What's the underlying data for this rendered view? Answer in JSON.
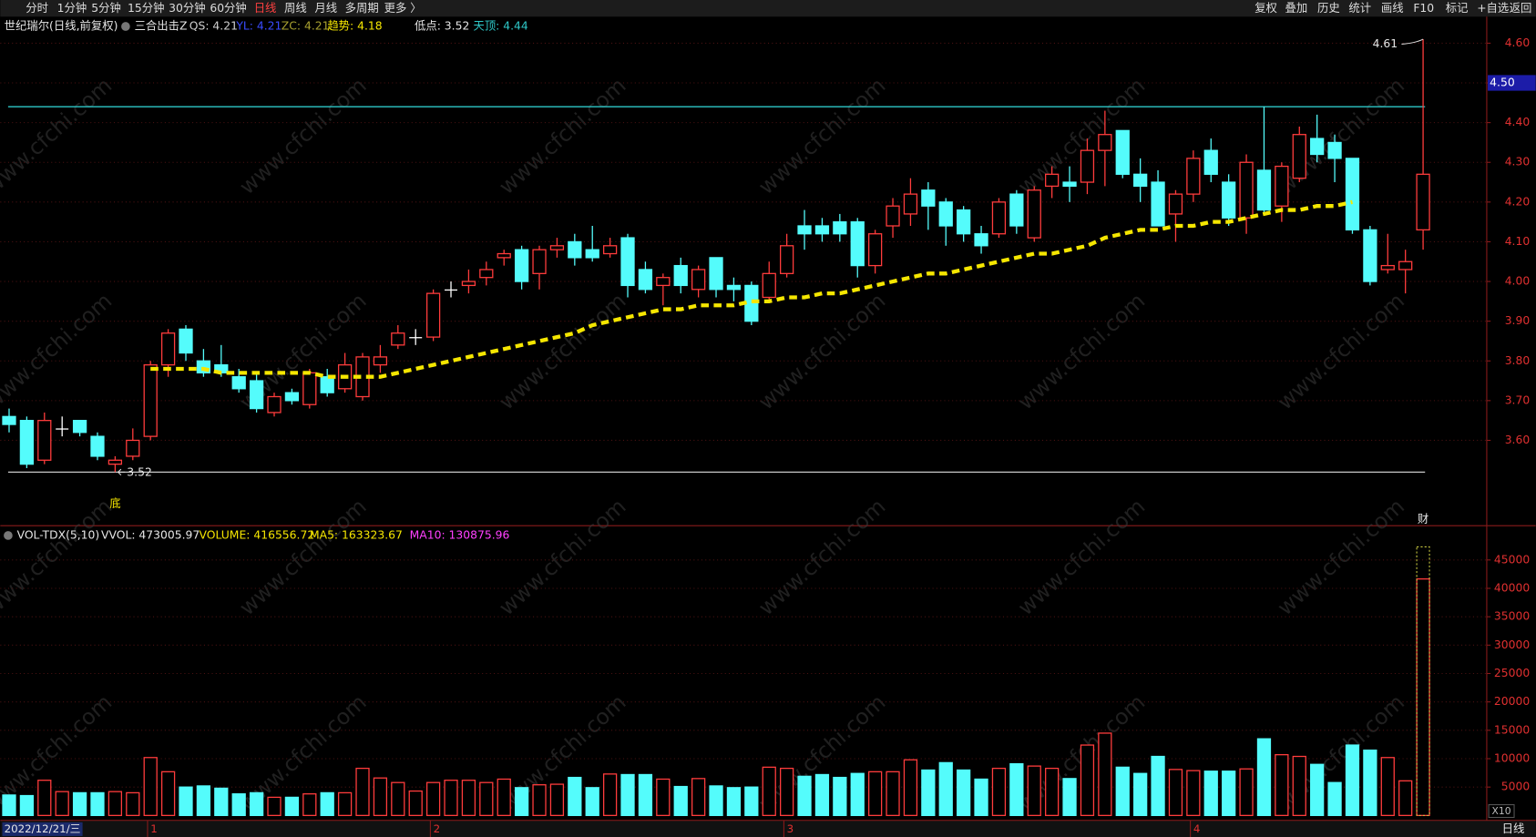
{
  "toolbar": {
    "left": [
      "分时",
      "1分钟",
      "5分钟",
      "15分钟",
      "30分钟",
      "60分钟",
      "日线",
      "周线",
      "月线",
      "多周期",
      "更多 〉"
    ],
    "right": [
      "复权",
      "叠加",
      "历史",
      "统计",
      "画线",
      "F10",
      "标记",
      "+自选",
      "返回"
    ]
  },
  "header": {
    "title": "世纪瑞尔(日线,前复权)",
    "indicator": "三合出击Z",
    "qs": "QS: 4.21",
    "yl": "YL: 4.21",
    "zc": "ZC: 4.21",
    "trend": "趋势: 4.18",
    "low": "低点: 3.52",
    "top": "天顶: 4.44"
  },
  "volume_header": {
    "name": "VOL-TDX(5,10)",
    "vvol": "VVOL: 473005.97",
    "volume": "VOLUME: 416556.72",
    "ma5": "MA5: 163323.67",
    "ma10": "MA10: 130875.96",
    "scale": "X10"
  },
  "watermark": "www.cfchi.com",
  "period": "日线",
  "chart_data": [
    {
      "type": "candlestick",
      "categories": [
        "2022/12/21/三",
        null,
        null,
        null,
        null,
        null,
        null,
        null,
        "1",
        null,
        null,
        null,
        null,
        null,
        null,
        null,
        null,
        null,
        null,
        null,
        null,
        null,
        null,
        null,
        "2",
        null,
        null,
        null,
        null,
        null,
        null,
        null,
        null,
        null,
        null,
        null,
        null,
        null,
        null,
        null,
        null,
        null,
        null,
        null,
        "3",
        null,
        null,
        null,
        null,
        null,
        null,
        null,
        null,
        null,
        null,
        null,
        null,
        null,
        null,
        null,
        null,
        null,
        null,
        null,
        null,
        null,
        null,
        "4",
        null,
        null,
        null,
        null,
        null,
        null,
        null,
        null,
        null,
        null,
        null,
        null,
        null
      ],
      "open": [
        3.66,
        3.65,
        3.55,
        3.63,
        3.65,
        3.61,
        3.54,
        3.56,
        3.61,
        3.79,
        3.88,
        3.8,
        3.79,
        3.76,
        3.75,
        3.67,
        3.72,
        3.69,
        3.76,
        3.73,
        3.71,
        3.79,
        3.84,
        3.86,
        3.86,
        3.98,
        3.99,
        4.01,
        4.06,
        4.08,
        4.02,
        4.08,
        4.1,
        4.08,
        4.07,
        4.11,
        4.03,
        3.99,
        4.04,
        3.98,
        4.06,
        3.99,
        3.99,
        3.96,
        4.02,
        4.14,
        4.14,
        4.15,
        4.15,
        4.04,
        4.14,
        4.17,
        4.23,
        4.2,
        4.18,
        4.12,
        4.12,
        4.22,
        4.11,
        4.24,
        4.25,
        4.25,
        4.33,
        4.38,
        4.27,
        4.25,
        4.17,
        4.22,
        4.33,
        4.25,
        4.16,
        4.28,
        4.19,
        4.26,
        4.36,
        4.35,
        4.31,
        4.13,
        4.03,
        4.03,
        4.13
      ],
      "high": [
        3.68,
        3.66,
        3.67,
        3.66,
        3.65,
        3.62,
        3.56,
        3.63,
        3.8,
        3.88,
        3.89,
        3.83,
        3.84,
        3.78,
        3.77,
        3.72,
        3.73,
        3.78,
        3.78,
        3.82,
        3.82,
        3.84,
        3.89,
        3.88,
        3.98,
        4.0,
        4.03,
        4.05,
        4.08,
        4.09,
        4.09,
        4.11,
        4.12,
        4.14,
        4.11,
        4.12,
        4.05,
        4.02,
        4.06,
        4.04,
        4.06,
        4.01,
        4.0,
        4.05,
        4.12,
        4.18,
        4.16,
        4.17,
        4.16,
        4.13,
        4.21,
        4.26,
        4.25,
        4.21,
        4.19,
        4.14,
        4.21,
        4.23,
        4.24,
        4.29,
        4.29,
        4.36,
        4.43,
        4.38,
        4.31,
        4.28,
        4.23,
        4.33,
        4.36,
        4.27,
        4.32,
        4.44,
        4.3,
        4.39,
        4.42,
        4.37,
        4.31,
        4.14,
        4.12,
        4.08,
        4.61
      ],
      "low": [
        3.62,
        3.53,
        3.54,
        3.61,
        3.61,
        3.55,
        3.52,
        3.55,
        3.6,
        3.76,
        3.8,
        3.76,
        3.76,
        3.72,
        3.67,
        3.66,
        3.69,
        3.68,
        3.71,
        3.72,
        3.7,
        3.77,
        3.83,
        3.84,
        3.85,
        3.96,
        3.97,
        3.99,
        4.04,
        3.98,
        3.98,
        4.06,
        4.04,
        4.05,
        4.06,
        3.96,
        3.97,
        3.94,
        3.97,
        3.96,
        3.96,
        3.95,
        3.89,
        3.95,
        4.01,
        4.08,
        4.1,
        4.1,
        4.01,
        4.02,
        4.11,
        4.14,
        4.13,
        4.09,
        4.1,
        4.07,
        4.11,
        4.12,
        4.1,
        4.21,
        4.2,
        4.22,
        4.24,
        4.26,
        4.2,
        4.14,
        4.1,
        4.2,
        4.25,
        4.14,
        4.12,
        4.17,
        4.15,
        4.25,
        4.3,
        4.25,
        4.12,
        3.99,
        4.02,
        3.97,
        4.08
      ],
      "close": [
        3.64,
        3.54,
        3.65,
        3.63,
        3.62,
        3.56,
        3.55,
        3.6,
        3.79,
        3.87,
        3.82,
        3.77,
        3.77,
        3.73,
        3.68,
        3.71,
        3.7,
        3.77,
        3.72,
        3.79,
        3.81,
        3.81,
        3.87,
        3.86,
        3.97,
        3.98,
        4.0,
        4.03,
        4.07,
        4.0,
        4.08,
        4.09,
        4.06,
        4.06,
        4.09,
        3.99,
        3.98,
        4.01,
        3.99,
        4.03,
        3.98,
        3.98,
        3.9,
        4.02,
        4.09,
        4.12,
        4.12,
        4.12,
        4.04,
        4.12,
        4.19,
        4.22,
        4.19,
        4.14,
        4.12,
        4.09,
        4.2,
        4.14,
        4.23,
        4.27,
        4.24,
        4.33,
        4.37,
        4.27,
        4.24,
        4.14,
        4.22,
        4.31,
        4.27,
        4.16,
        4.3,
        4.18,
        4.29,
        4.37,
        4.32,
        4.31,
        4.13,
        4.0,
        4.04,
        4.05,
        4.27
      ],
      "trend_values": [
        null,
        null,
        null,
        null,
        null,
        null,
        null,
        null,
        3.78,
        3.78,
        3.78,
        3.78,
        3.77,
        3.77,
        3.77,
        3.77,
        3.77,
        3.77,
        3.76,
        3.76,
        3.76,
        3.76,
        3.77,
        3.78,
        3.79,
        3.8,
        3.81,
        3.82,
        3.83,
        3.84,
        3.85,
        3.86,
        3.87,
        3.89,
        3.9,
        3.91,
        3.92,
        3.93,
        3.93,
        3.94,
        3.94,
        3.94,
        3.95,
        3.95,
        3.96,
        3.96,
        3.97,
        3.97,
        3.98,
        3.99,
        4.0,
        4.01,
        4.02,
        4.02,
        4.03,
        4.04,
        4.05,
        4.06,
        4.07,
        4.07,
        4.08,
        4.09,
        4.11,
        4.12,
        4.13,
        4.13,
        4.14,
        4.14,
        4.15,
        4.15,
        4.16,
        4.17,
        4.18,
        4.18,
        4.19,
        4.19,
        4.2,
        null,
        null,
        null,
        null
      ],
      "trend_color": "#f5e600",
      "up_color": "#ff3c3c",
      "down_color": "#54fcfc",
      "doji_color": "#ffffff",
      "hlines": [
        {
          "value": 4.44,
          "color": "#2ec8c8"
        },
        {
          "value": 3.52,
          "color": "#c8c8c8"
        }
      ],
      "ylim": [
        3.39,
        4.62
      ],
      "yticks": [
        {
          "value": 3.6,
          "label": "3.60"
        },
        {
          "value": 3.7,
          "label": "3.70"
        },
        {
          "value": 3.8,
          "label": "3.80"
        },
        {
          "value": 3.9,
          "label": "3.90"
        },
        {
          "value": 4.0,
          "label": "4.00"
        },
        {
          "value": 4.1,
          "label": "4.10"
        },
        {
          "value": 4.2,
          "label": "4.20"
        },
        {
          "value": 4.3,
          "label": "4.30"
        },
        {
          "value": 4.4,
          "label": "4.40"
        },
        {
          "value": 4.5,
          "label": "4.50"
        },
        {
          "value": 4.6,
          "label": "4.60"
        }
      ],
      "grid": true,
      "price_marker": {
        "value": 4.5,
        "label": "4.50"
      },
      "high_label": {
        "value": 4.61,
        "label": "4.61"
      },
      "low_label": {
        "value": 3.52,
        "label": "3.52"
      },
      "bottom_mark": "底",
      "finance_mark": "财"
    },
    {
      "type": "bar",
      "values": [
        3600,
        3500,
        6200,
        4200,
        4000,
        4000,
        4200,
        4000,
        10200,
        7700,
        5000,
        5200,
        4800,
        3800,
        4000,
        3200,
        3200,
        3800,
        4000,
        4000,
        8300,
        6600,
        5800,
        4300,
        5800,
        6200,
        6200,
        5800,
        6400,
        4900,
        5400,
        5500,
        6700,
        4900,
        7300,
        7200,
        7200,
        6400,
        5100,
        6500,
        5200,
        4900,
        5000,
        8500,
        8300,
        6900,
        7200,
        6700,
        7400,
        7700,
        7700,
        9800,
        8000,
        9300,
        8000,
        6400,
        8300,
        9100,
        8700,
        8300,
        6500,
        12400,
        14500,
        8500,
        7400,
        10400,
        8100,
        7900,
        7800,
        7800,
        8200,
        13500,
        10700,
        10400,
        9000,
        5800,
        12400,
        11500,
        10200,
        6100,
        41655.672
      ],
      "vvol": 47300.597,
      "ylim": [
        0,
        50000
      ],
      "yticks": [
        5000,
        10000,
        15000,
        20000,
        25000,
        30000,
        35000,
        40000,
        45000
      ],
      "grid": true
    }
  ]
}
